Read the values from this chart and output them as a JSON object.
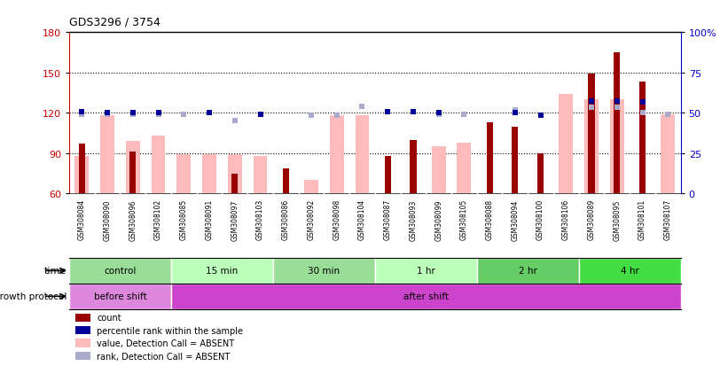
{
  "title": "GDS3296 / 3754",
  "samples": [
    "GSM308084",
    "GSM308090",
    "GSM308096",
    "GSM308102",
    "GSM308085",
    "GSM308091",
    "GSM308097",
    "GSM308103",
    "GSM308086",
    "GSM308092",
    "GSM308098",
    "GSM308104",
    "GSM308087",
    "GSM308093",
    "GSM308099",
    "GSM308105",
    "GSM308088",
    "GSM308094",
    "GSM308100",
    "GSM308106",
    "GSM308089",
    "GSM308095",
    "GSM308101",
    "GSM308107"
  ],
  "count": [
    97,
    0,
    91,
    0,
    0,
    0,
    75,
    0,
    79,
    0,
    0,
    0,
    88,
    100,
    0,
    0,
    113,
    110,
    90,
    0,
    149,
    165,
    143,
    0
  ],
  "value_absent": [
    88,
    118,
    99,
    103,
    89,
    89,
    89,
    88,
    0,
    70,
    118,
    118,
    0,
    0,
    95,
    98,
    0,
    0,
    0,
    134,
    130,
    130,
    0,
    119
  ],
  "percentile_rank": [
    121,
    120,
    120,
    120,
    0,
    120,
    0,
    119,
    0,
    0,
    0,
    0,
    121,
    121,
    120,
    0,
    0,
    120,
    118,
    0,
    129,
    129,
    128,
    0
  ],
  "rank_absent": [
    119,
    119,
    119,
    119,
    119,
    0,
    114,
    0,
    0,
    118,
    118,
    125,
    0,
    0,
    119,
    119,
    0,
    122,
    0,
    0,
    124,
    124,
    120,
    119
  ],
  "ylim_left": [
    60,
    180
  ],
  "yticks_left": [
    60,
    90,
    120,
    150,
    180
  ],
  "yticks_right": [
    0,
    25,
    50,
    75,
    100
  ],
  "left_color": "#cc0000",
  "right_color": "#0000cc",
  "bar_color_count": "#990000",
  "bar_color_value_absent": "#ffbbbb",
  "dot_color_percentile": "#000099",
  "dot_color_rank_absent": "#aaaacc",
  "time_groups": [
    {
      "label": "control",
      "start": 0,
      "end": 4,
      "color": "#99dd99"
    },
    {
      "label": "15 min",
      "start": 4,
      "end": 8,
      "color": "#bbffbb"
    },
    {
      "label": "30 min",
      "start": 8,
      "end": 12,
      "color": "#99dd99"
    },
    {
      "label": "1 hr",
      "start": 12,
      "end": 16,
      "color": "#bbffbb"
    },
    {
      "label": "2 hr",
      "start": 16,
      "end": 20,
      "color": "#55cc55"
    },
    {
      "label": "4 hr",
      "start": 20,
      "end": 24,
      "color": "#44ee44"
    }
  ],
  "protocol_groups": [
    {
      "label": "before shift",
      "start": 0,
      "end": 4,
      "color": "#dd88dd"
    },
    {
      "label": "after shift",
      "start": 4,
      "end": 24,
      "color": "#cc44cc"
    }
  ],
  "bg": "#ffffff",
  "xtick_bg": "#cccccc",
  "legend_items": [
    {
      "color": "#990000",
      "label": "count"
    },
    {
      "color": "#000099",
      "label": "percentile rank within the sample"
    },
    {
      "color": "#ffbbbb",
      "label": "value, Detection Call = ABSENT"
    },
    {
      "color": "#aaaacc",
      "label": "rank, Detection Call = ABSENT"
    }
  ]
}
